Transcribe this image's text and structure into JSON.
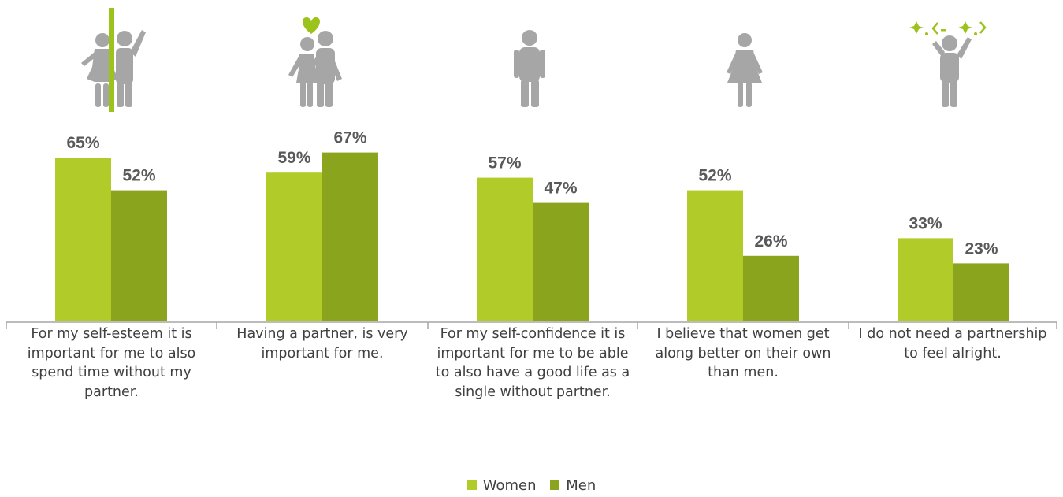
{
  "chart_data": {
    "type": "bar",
    "categories": [
      "For my self-esteem  it is important for me to also spend time without my partner.",
      "Having a partner, is very important for me.",
      "For my self-confidence it is important for me to be able to also have a good life as a single without partner.",
      "I believe that women get along better on their own than men.",
      "I do not need a partnership to feel alright."
    ],
    "series": [
      {
        "name": "Women",
        "values": [
          65,
          59,
          57,
          52,
          33
        ],
        "labels": [
          "65%",
          "59%",
          "57%",
          "52%",
          "33%"
        ],
        "color": "#b1cb29"
      },
      {
        "name": "Men",
        "values": [
          52,
          67,
          47,
          26,
          23
        ],
        "labels": [
          "52%",
          "67%",
          "47%",
          "26%",
          "23%"
        ],
        "color": "#8aa41e"
      }
    ],
    "ylim": [
      0,
      100
    ],
    "grid": false,
    "legend": "bottom-center"
  },
  "icons": [
    "couple-apart-icon",
    "couple-hug-heart-icon",
    "single-man-icon",
    "single-woman-icon",
    "cheering-person-icon"
  ],
  "colors": {
    "icon": "#a6a6a6",
    "accent": "#9bc31c",
    "axis": "#a6a6a6"
  }
}
